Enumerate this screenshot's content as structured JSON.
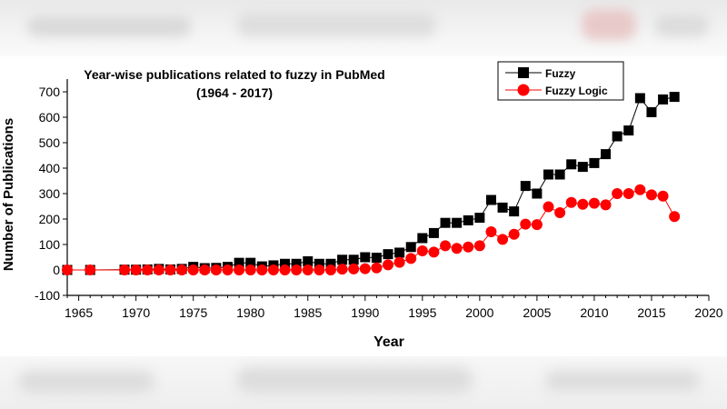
{
  "chart_data": {
    "type": "line",
    "title": "Year-wise publications related to fuzzy in PubMed",
    "subtitle": "(1964 - 2017)",
    "xlabel": "Year",
    "ylabel": "Number of Publications",
    "xlim": [
      1964,
      2020
    ],
    "ylim": [
      -100,
      750
    ],
    "xticks": [
      1965,
      1970,
      1975,
      1980,
      1985,
      1990,
      1995,
      2000,
      2005,
      2010,
      2015,
      2020
    ],
    "yticks": [
      -100,
      0,
      100,
      200,
      300,
      400,
      500,
      600,
      700
    ],
    "grid": false,
    "legend_position": "top-right",
    "series": [
      {
        "name": "Fuzzy",
        "color": "#000000",
        "marker": "square",
        "points": [
          [
            1964,
            0
          ],
          [
            1966,
            0
          ],
          [
            1969,
            1
          ],
          [
            1970,
            1
          ],
          [
            1971,
            2
          ],
          [
            1972,
            4
          ],
          [
            1973,
            2
          ],
          [
            1974,
            4
          ],
          [
            1975,
            12
          ],
          [
            1976,
            7
          ],
          [
            1977,
            8
          ],
          [
            1978,
            12
          ],
          [
            1979,
            28
          ],
          [
            1980,
            28
          ],
          [
            1981,
            14
          ],
          [
            1982,
            18
          ],
          [
            1983,
            24
          ],
          [
            1984,
            24
          ],
          [
            1985,
            34
          ],
          [
            1986,
            24
          ],
          [
            1987,
            24
          ],
          [
            1988,
            40
          ],
          [
            1989,
            40
          ],
          [
            1990,
            50
          ],
          [
            1991,
            48
          ],
          [
            1992,
            62
          ],
          [
            1993,
            68
          ],
          [
            1994,
            90
          ],
          [
            1995,
            125
          ],
          [
            1996,
            145
          ],
          [
            1997,
            185
          ],
          [
            1998,
            185
          ],
          [
            1999,
            195
          ],
          [
            2000,
            205
          ],
          [
            2001,
            275
          ],
          [
            2002,
            245
          ],
          [
            2003,
            230
          ],
          [
            2004,
            330
          ],
          [
            2005,
            300
          ],
          [
            2006,
            375
          ],
          [
            2007,
            375
          ],
          [
            2008,
            415
          ],
          [
            2009,
            405
          ],
          [
            2010,
            420
          ],
          [
            2011,
            455
          ],
          [
            2012,
            525
          ],
          [
            2013,
            548
          ],
          [
            2014,
            675
          ],
          [
            2015,
            620
          ],
          [
            2016,
            670
          ],
          [
            2017,
            680
          ]
        ]
      },
      {
        "name": "Fuzzy Logic",
        "color": "#ff0000",
        "marker": "circle",
        "points": [
          [
            1964,
            0
          ],
          [
            1966,
            0
          ],
          [
            1969,
            0
          ],
          [
            1970,
            0
          ],
          [
            1971,
            0
          ],
          [
            1972,
            0
          ],
          [
            1973,
            0
          ],
          [
            1974,
            0
          ],
          [
            1975,
            0
          ],
          [
            1976,
            0
          ],
          [
            1977,
            0
          ],
          [
            1978,
            0
          ],
          [
            1979,
            0
          ],
          [
            1980,
            0
          ],
          [
            1981,
            0
          ],
          [
            1982,
            0
          ],
          [
            1983,
            0
          ],
          [
            1984,
            0
          ],
          [
            1985,
            0
          ],
          [
            1986,
            0
          ],
          [
            1987,
            0
          ],
          [
            1988,
            3
          ],
          [
            1989,
            4
          ],
          [
            1990,
            5
          ],
          [
            1991,
            8
          ],
          [
            1992,
            20
          ],
          [
            1993,
            30
          ],
          [
            1994,
            45
          ],
          [
            1995,
            75
          ],
          [
            1996,
            70
          ],
          [
            1997,
            95
          ],
          [
            1998,
            85
          ],
          [
            1999,
            90
          ],
          [
            2000,
            95
          ],
          [
            2001,
            150
          ],
          [
            2002,
            120
          ],
          [
            2003,
            140
          ],
          [
            2004,
            180
          ],
          [
            2005,
            178
          ],
          [
            2006,
            248
          ],
          [
            2007,
            225
          ],
          [
            2008,
            265
          ],
          [
            2009,
            258
          ],
          [
            2010,
            262
          ],
          [
            2011,
            256
          ],
          [
            2012,
            300
          ],
          [
            2013,
            300
          ],
          [
            2014,
            315
          ],
          [
            2015,
            295
          ],
          [
            2016,
            290
          ],
          [
            2017,
            210
          ]
        ]
      }
    ]
  }
}
